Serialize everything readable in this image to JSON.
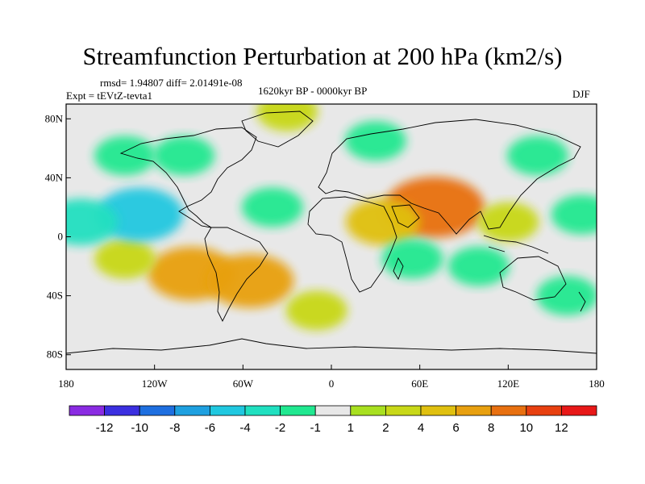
{
  "title": "Streamfunction Perturbation at 200 hPa (km2/s)",
  "rmsd_text": "rmsd= 1.94807 diff= 2.01491e-08",
  "experiment": "Expt = tEVtZ-tevta1",
  "period": "1620kyr BP - 0000kyr BP",
  "season": "DJF",
  "map": {
    "projection": "cylindrical equidistant",
    "lon_range": [
      -180,
      180
    ],
    "lat_range": [
      -90,
      90
    ],
    "lat_ticks": [
      {
        "value": 80,
        "label": "80N"
      },
      {
        "value": 40,
        "label": "40N"
      },
      {
        "value": 0,
        "label": "0"
      },
      {
        "value": -40,
        "label": "40S"
      },
      {
        "value": -80,
        "label": "80S"
      }
    ],
    "lon_ticks": [
      {
        "value": -180,
        "label": "180"
      },
      {
        "value": -120,
        "label": "120W"
      },
      {
        "value": -60,
        "label": "60W"
      },
      {
        "value": 0,
        "label": "0"
      },
      {
        "value": 60,
        "label": "60E"
      },
      {
        "value": 120,
        "label": "120E"
      },
      {
        "value": 180,
        "label": "180"
      }
    ],
    "background_color": "#e8e8e8",
    "coastline_color": "#000000"
  },
  "colorbar": {
    "colors": [
      "#8a2be2",
      "#3b2fe0",
      "#1e6fe0",
      "#1ea0e0",
      "#20c8e0",
      "#20e0c0",
      "#20e890",
      "#e8e8e8",
      "#a8e020",
      "#c8d818",
      "#e0c010",
      "#e8a010",
      "#e87010",
      "#e84010",
      "#e81818"
    ],
    "labels": [
      "-12",
      "-10",
      "-8",
      "-6",
      "-4",
      "-2",
      "-1",
      "1",
      "2",
      "4",
      "6",
      "8",
      "10",
      "12"
    ]
  },
  "anomalies": [
    {
      "lon": 70,
      "lat": 20,
      "value": 8
    },
    {
      "lon": 35,
      "lat": 10,
      "value": 4
    },
    {
      "lon": 120,
      "lat": 10,
      "value": 2
    },
    {
      "lon": -95,
      "lat": -25,
      "value": 6
    },
    {
      "lon": -55,
      "lat": -30,
      "value": 6
    },
    {
      "lon": -140,
      "lat": -15,
      "value": 2
    },
    {
      "lon": -130,
      "lat": 15,
      "value": -6
    },
    {
      "lon": -170,
      "lat": 10,
      "value": -4
    },
    {
      "lon": -40,
      "lat": 20,
      "value": -2
    },
    {
      "lon": 55,
      "lat": -15,
      "value": -2
    },
    {
      "lon": 100,
      "lat": -20,
      "value": -2
    },
    {
      "lon": 170,
      "lat": 15,
      "value": -2
    },
    {
      "lon": -100,
      "lat": 55,
      "value": -2
    },
    {
      "lon": 30,
      "lat": 65,
      "value": -2
    },
    {
      "lon": 140,
      "lat": 55,
      "value": -2
    },
    {
      "lon": -140,
      "lat": 55,
      "value": -2
    },
    {
      "lon": 160,
      "lat": -40,
      "value": -2
    },
    {
      "lon": -10,
      "lat": -50,
      "value": 2
    },
    {
      "lon": -30,
      "lat": 85,
      "value": 2
    }
  ]
}
